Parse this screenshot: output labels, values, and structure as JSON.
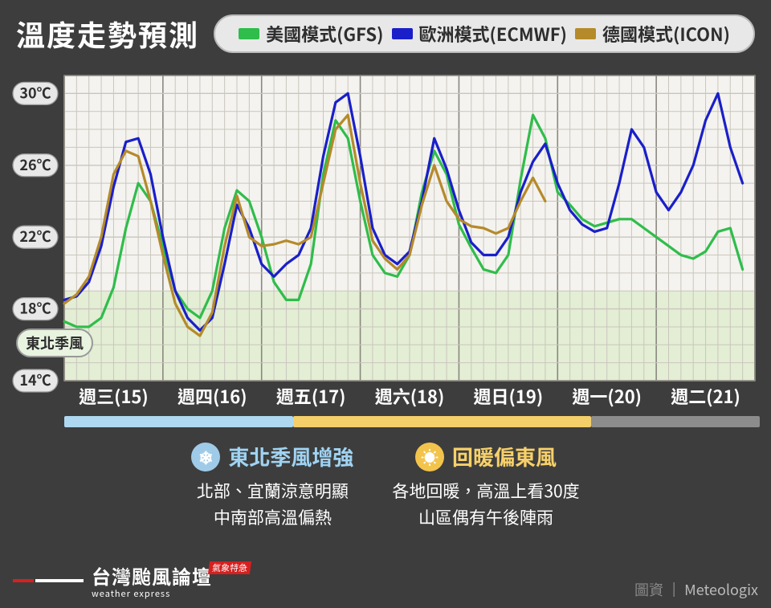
{
  "title": "溫度走勢預測",
  "legend": {
    "items": [
      {
        "label": "美國模式(GFS)",
        "color": "#2fbd4b"
      },
      {
        "label": "歐洲模式(ECMWF)",
        "color": "#1a1fc9"
      },
      {
        "label": "德國模式(ICON)",
        "color": "#b58a2a"
      }
    ],
    "pill_bg": "#e8e8e8"
  },
  "chart": {
    "type": "line",
    "plot_bg": "#f4f3ef",
    "grid_color": "#c9c6bc",
    "day_divider_color": "#8a887f",
    "axis_label_color": "#ffffff",
    "shade_band": {
      "ymin": 14,
      "ymax": 19,
      "fill": "#dfeccf",
      "opacity": 0.85
    },
    "ylim": [
      14,
      31
    ],
    "yticks": [
      14,
      18,
      22,
      26,
      30
    ],
    "ytick_labels": [
      "14℃",
      "18℃",
      "22℃",
      "26℃",
      "30℃"
    ],
    "ytick_bg": "#e8e8e8",
    "x_days": [
      "週三(15)",
      "週四(16)",
      "週五(17)",
      "週六(18)",
      "週日(19)",
      "週一(20)",
      "週二(21)"
    ],
    "minor_per_day": 8,
    "line_width": 3.2,
    "series": [
      {
        "name": "gfs",
        "color": "#2fbd4b",
        "y": [
          17.3,
          17.0,
          17.0,
          17.5,
          19.2,
          22.5,
          25.0,
          24.0,
          21.5,
          19.0,
          18.0,
          17.5,
          19.0,
          22.5,
          24.6,
          24.0,
          22.0,
          19.5,
          18.5,
          18.5,
          20.5,
          25.5,
          28.5,
          27.5,
          24.0,
          21.0,
          20.0,
          19.8,
          21.0,
          24.5,
          26.8,
          25.5,
          22.7,
          21.4,
          20.2,
          20.0,
          21.0,
          25.2,
          28.8,
          27.5,
          24.5,
          23.8,
          23.0,
          22.6,
          22.8,
          23.0,
          23.0,
          22.5,
          22.0,
          21.5,
          21.0,
          20.8,
          21.2,
          22.3,
          22.5,
          20.2
        ]
      },
      {
        "name": "ecmwf",
        "color": "#1a1fc9",
        "y": [
          18.5,
          18.7,
          19.5,
          21.5,
          24.8,
          27.3,
          27.5,
          25.5,
          22.0,
          19.0,
          17.5,
          16.8,
          17.5,
          20.5,
          23.8,
          22.5,
          20.5,
          19.8,
          20.5,
          21.0,
          22.5,
          26.5,
          29.5,
          30.0,
          26.5,
          22.5,
          21.0,
          20.5,
          21.2,
          24.0,
          27.5,
          25.8,
          23.5,
          21.7,
          21.0,
          21.0,
          22.0,
          24.5,
          26.2,
          27.2,
          25.0,
          23.5,
          22.7,
          22.3,
          22.5,
          25.0,
          28.0,
          27.0,
          24.5,
          23.5,
          24.5,
          26.0,
          28.5,
          30.0,
          27.0,
          25.0
        ]
      },
      {
        "name": "icon",
        "color": "#b58a2a",
        "y": [
          18.3,
          18.8,
          19.8,
          22.0,
          25.5,
          26.8,
          26.5,
          24.0,
          21.0,
          18.3,
          17.0,
          16.5,
          17.8,
          21.5,
          24.3,
          22.0,
          21.5,
          21.6,
          21.8,
          21.6,
          22.0,
          25.0,
          28.0,
          28.8,
          25.0,
          21.8,
          20.8,
          20.2,
          21.0,
          23.8,
          26.0,
          24.0,
          23.0,
          22.6,
          22.5,
          22.2,
          22.5,
          24.0,
          25.3,
          24.0
        ]
      }
    ],
    "annotation": {
      "label": "東北季風",
      "y_at": 16.3
    }
  },
  "timeline": {
    "segments": [
      {
        "color": "#add8f0",
        "weight": 2.3
      },
      {
        "color": "#f5cf6a",
        "weight": 3.0
      },
      {
        "color": "#8c8c8c",
        "weight": 1.7
      }
    ]
  },
  "summary": [
    {
      "icon": "❄",
      "icon_bg": "#9fcbe8",
      "icon_color": "#ffffff",
      "title": "東北季風增強",
      "title_color": "#9fd3f2",
      "lines": [
        "北部、宜蘭涼意明顯",
        "中南部高溫偏熱"
      ]
    },
    {
      "icon": "☀",
      "icon_bg": "#f3c44c",
      "icon_color": "#ffffff",
      "title": "回暖偏東風",
      "title_color": "#f6d06a",
      "lines": [
        "各地回暖，高溫上看30度",
        "山區偶有午後陣雨"
      ]
    }
  ],
  "brand": {
    "main": "台灣颱風論壇",
    "sub": "weather express",
    "stamp": "氣象特急"
  },
  "credit": {
    "label": "圖資",
    "value": "Meteologix"
  }
}
